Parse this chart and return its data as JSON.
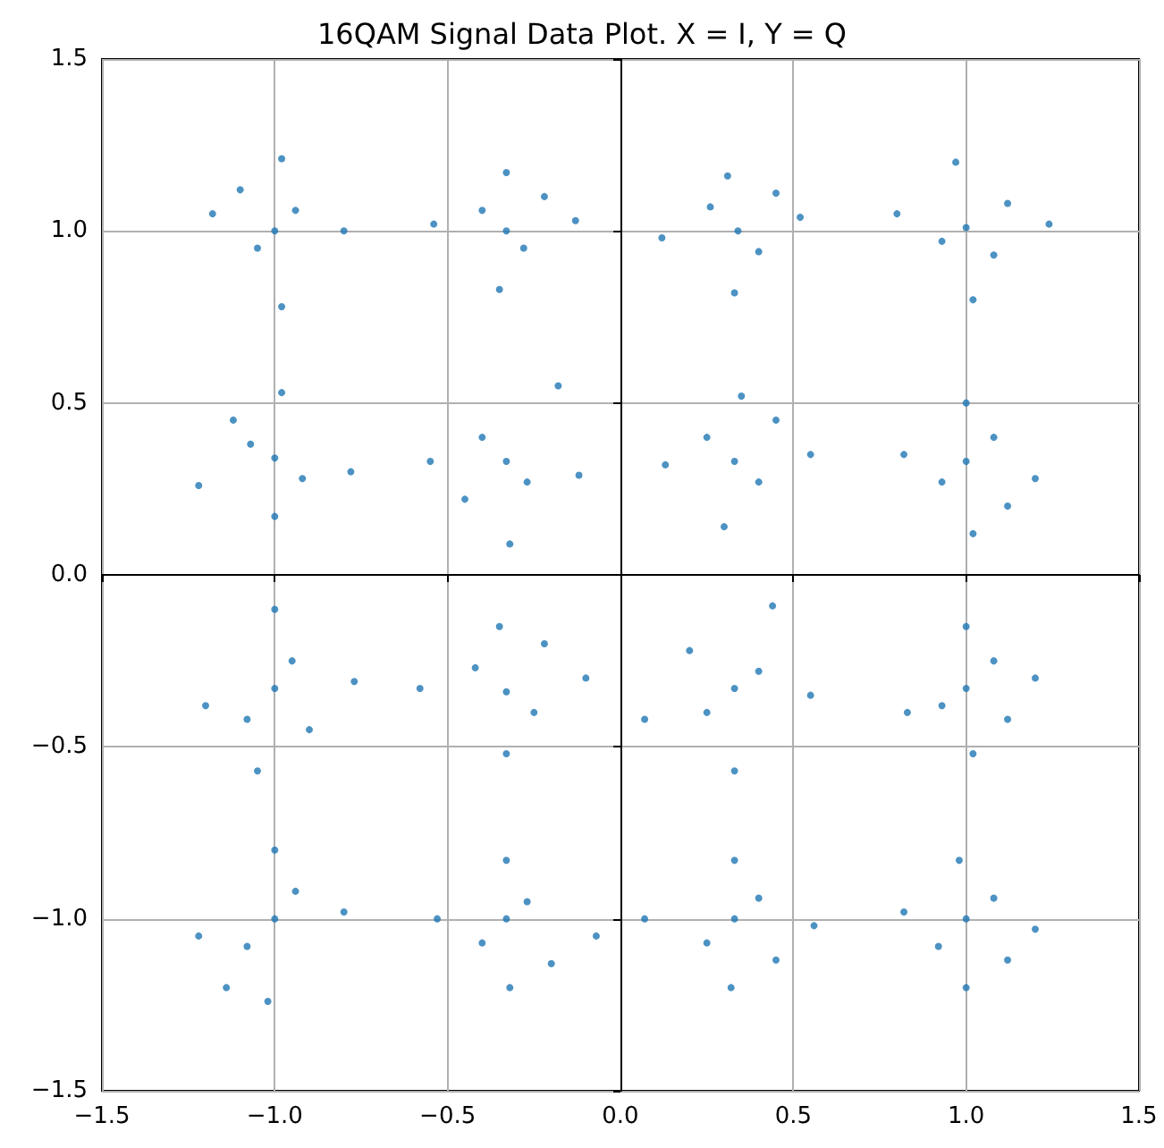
{
  "chart_data": {
    "type": "scatter",
    "title": "16QAM Signal Data Plot. X = I, Y = Q",
    "color": "#1f77b4",
    "marker": "circle",
    "grid": true,
    "x": [
      -0.98,
      -1.18,
      -0.8,
      -0.98,
      -1.05,
      -0.94,
      -1.0,
      -1.1,
      -0.33,
      -0.54,
      -0.13,
      -0.35,
      -0.28,
      -0.4,
      -0.33,
      -0.22,
      0.31,
      0.12,
      0.52,
      0.33,
      0.4,
      0.26,
      0.34,
      0.45,
      0.97,
      0.8,
      1.24,
      1.02,
      1.08,
      0.93,
      1.0,
      1.12,
      -0.98,
      -1.22,
      -0.78,
      -1.0,
      -1.07,
      -0.92,
      -1.0,
      -1.12,
      -0.18,
      -0.55,
      -0.12,
      -0.32,
      -0.4,
      -0.27,
      -0.33,
      -0.45,
      0.35,
      0.13,
      0.55,
      0.3,
      0.4,
      0.25,
      0.33,
      0.45,
      1.0,
      0.82,
      1.2,
      1.02,
      1.08,
      0.93,
      1.0,
      1.12,
      -1.0,
      -1.2,
      -0.77,
      -1.05,
      -0.95,
      -1.08,
      -1.0,
      -0.9,
      -0.35,
      -0.58,
      -0.1,
      -0.33,
      -0.25,
      -0.42,
      -0.33,
      -0.22,
      0.44,
      0.07,
      0.55,
      0.33,
      0.4,
      0.25,
      0.33,
      0.2,
      1.0,
      0.83,
      1.2,
      1.02,
      1.08,
      0.93,
      1.0,
      1.12,
      -1.0,
      -1.22,
      -0.8,
      -1.02,
      -0.94,
      -1.08,
      -1.0,
      -1.14,
      -0.33,
      -0.53,
      -0.07,
      -0.32,
      -0.27,
      -0.4,
      -0.33,
      -0.2,
      0.33,
      0.07,
      0.56,
      0.32,
      0.4,
      0.25,
      0.33,
      0.45,
      0.98,
      0.82,
      1.2,
      1.0,
      1.08,
      0.92,
      1.0,
      1.12
    ],
    "values": [
      1.21,
      1.05,
      1.0,
      0.78,
      0.95,
      1.06,
      1.0,
      1.12,
      1.17,
      1.02,
      1.03,
      0.83,
      0.95,
      1.06,
      1.0,
      1.1,
      1.16,
      0.98,
      1.04,
      0.82,
      0.94,
      1.07,
      1.0,
      1.11,
      1.2,
      1.05,
      1.02,
      0.8,
      0.93,
      0.97,
      1.01,
      1.08,
      0.53,
      0.26,
      0.3,
      0.17,
      0.38,
      0.28,
      0.34,
      0.45,
      0.55,
      0.33,
      0.29,
      0.09,
      0.4,
      0.27,
      0.33,
      0.22,
      0.52,
      0.32,
      0.35,
      0.14,
      0.27,
      0.4,
      0.33,
      0.45,
      0.5,
      0.35,
      0.28,
      0.12,
      0.4,
      0.27,
      0.33,
      0.2,
      -0.1,
      -0.38,
      -0.31,
      -0.57,
      -0.25,
      -0.42,
      -0.33,
      -0.45,
      -0.15,
      -0.33,
      -0.3,
      -0.52,
      -0.4,
      -0.27,
      -0.34,
      -0.2,
      -0.09,
      -0.42,
      -0.35,
      -0.57,
      -0.28,
      -0.4,
      -0.33,
      -0.22,
      -0.15,
      -0.4,
      -0.3,
      -0.52,
      -0.25,
      -0.38,
      -0.33,
      -0.42,
      -0.8,
      -1.05,
      -0.98,
      -1.24,
      -0.92,
      -1.08,
      -1.0,
      -1.2,
      -0.83,
      -1.0,
      -1.05,
      -1.2,
      -0.95,
      -1.07,
      -1.0,
      -1.13,
      -0.83,
      -1.0,
      -1.02,
      -1.2,
      -0.94,
      -1.07,
      -1.0,
      -1.12,
      -0.83,
      -0.98,
      -1.03,
      -1.2,
      -0.94,
      -1.08,
      -1.0,
      -1.12
    ],
    "xlim": [
      -1.5,
      1.5
    ],
    "ylim": [
      -1.5,
      1.5
    ],
    "xticks": [
      {
        "value": -1.5,
        "label": "−1.5"
      },
      {
        "value": -1,
        "label": "−1.0"
      },
      {
        "value": -0.5,
        "label": "−0.5"
      },
      {
        "value": 0,
        "label": "0.0"
      },
      {
        "value": 0.5,
        "label": "0.5"
      },
      {
        "value": 1,
        "label": "1.0"
      },
      {
        "value": 1.5,
        "label": "1.5"
      }
    ],
    "yticks": [
      {
        "value": -1.5,
        "label": "−1.5"
      },
      {
        "value": -1,
        "label": "−1.0"
      },
      {
        "value": -0.5,
        "label": "−0.5"
      },
      {
        "value": 0,
        "label": "0.0"
      },
      {
        "value": 0.5,
        "label": "0.5"
      },
      {
        "value": 1,
        "label": "1.0"
      },
      {
        "value": 1.5,
        "label": "1.5"
      }
    ]
  }
}
